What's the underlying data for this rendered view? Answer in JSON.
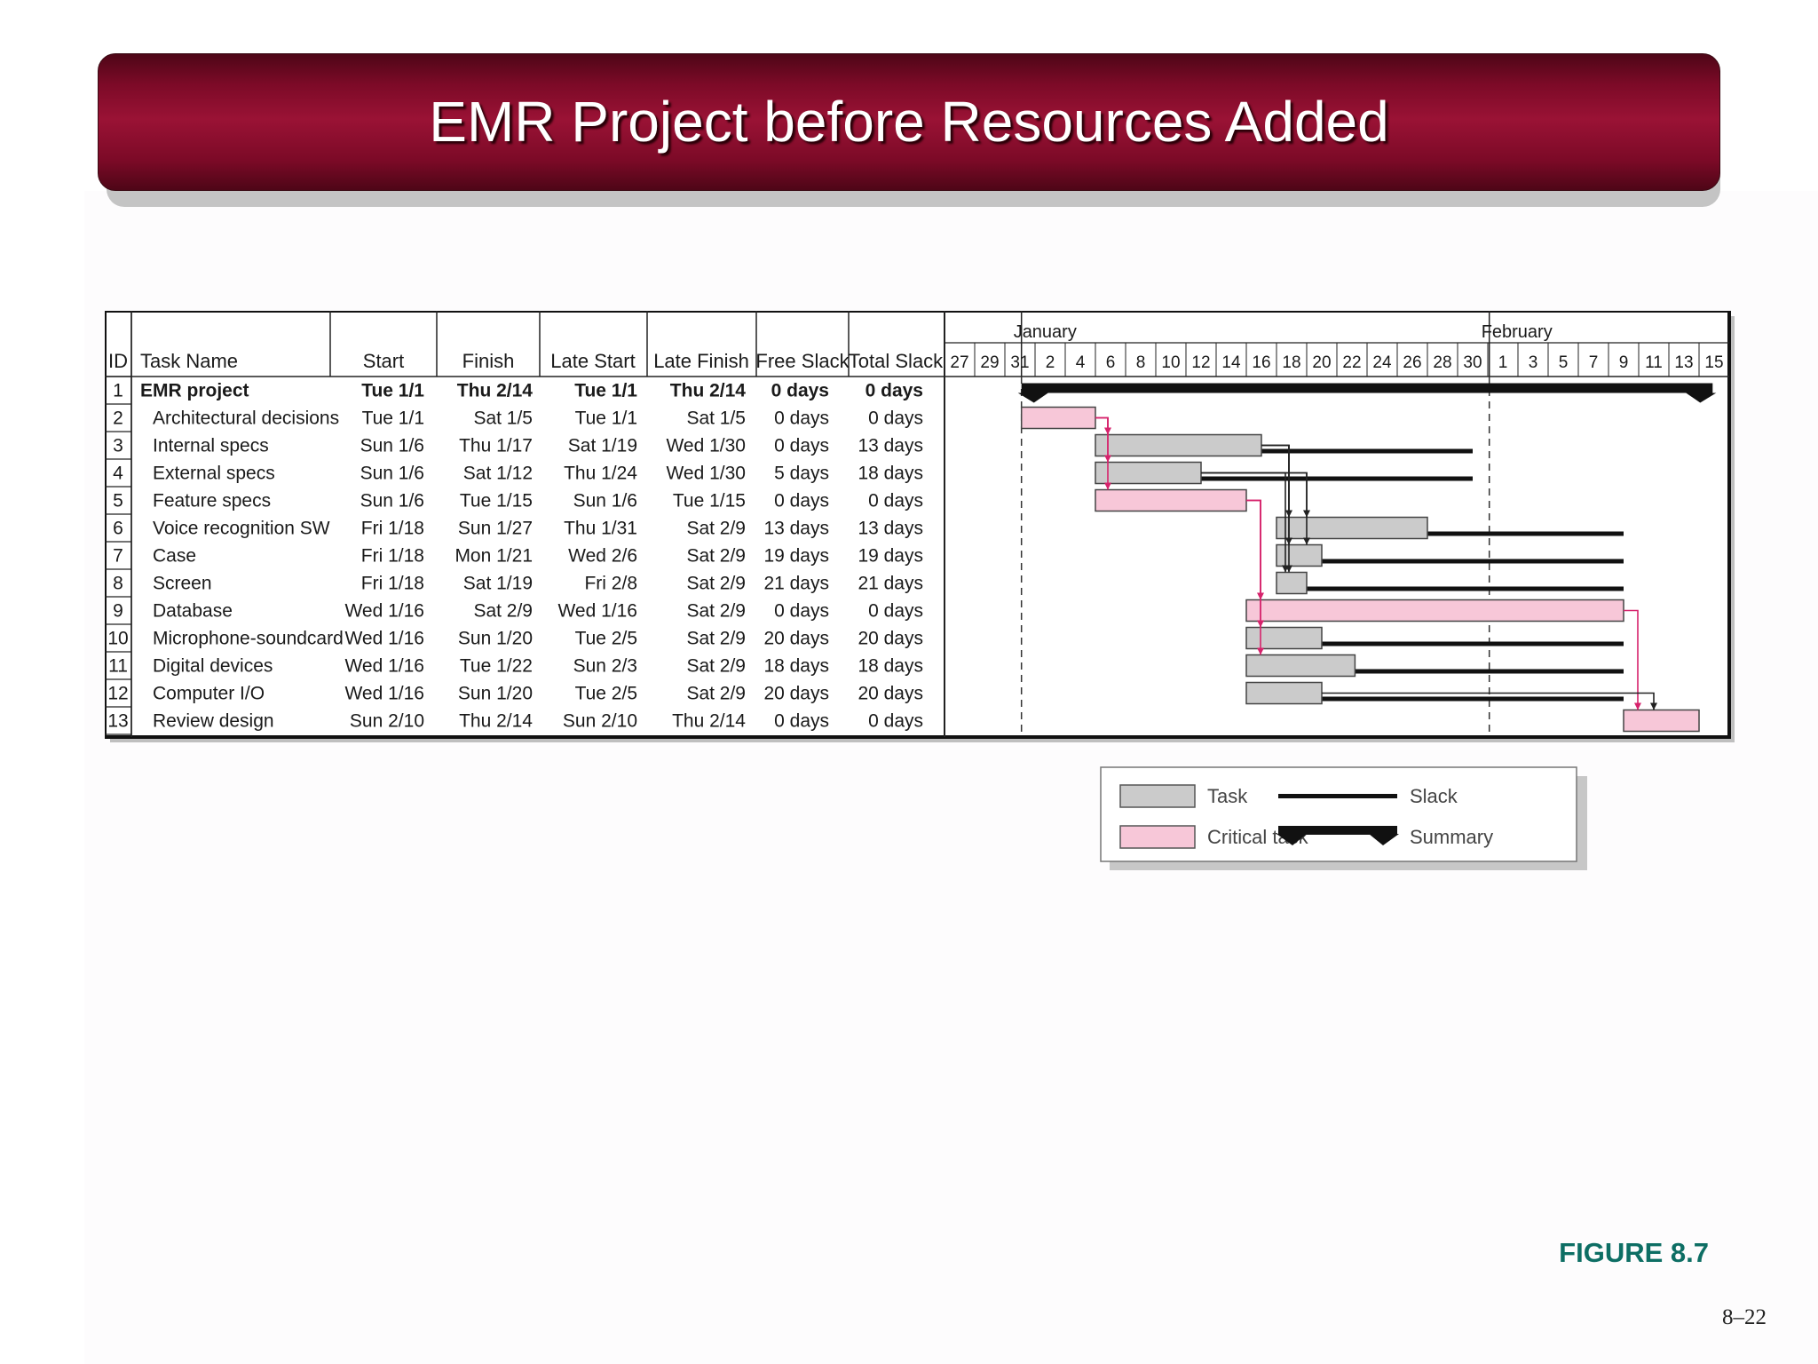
{
  "slide": {
    "title": "EMR Project before Resources Added",
    "figure_label": "FIGURE 8.7",
    "page_number": "8–22"
  },
  "colors": {
    "title_bar": "#8a0f2e",
    "task_bar": "#cbcbcb",
    "critical_bar": "#f7c7d8",
    "critical_link": "#d6236c",
    "figure_label": "#0d6e64"
  },
  "chart_data": {
    "type": "table",
    "columns": [
      "ID",
      "Task Name",
      "Start",
      "Finish",
      "Late Start",
      "Late Finish",
      "Free Slack",
      "Total Slack"
    ],
    "rows": [
      {
        "id": "1",
        "name": "EMR project",
        "start": "Tue 1/1",
        "finish": "Thu 2/14",
        "late_start": "Tue 1/1",
        "late_finish": "Thu 2/14",
        "free_slack": "0 days",
        "total_slack": "0 days",
        "summary": true
      },
      {
        "id": "2",
        "name": "Architectural decisions",
        "start": "Tue 1/1",
        "finish": "Sat 1/5",
        "late_start": "Tue 1/1",
        "late_finish": "Sat 1/5",
        "free_slack": "0 days",
        "total_slack": "0 days",
        "critical": true
      },
      {
        "id": "3",
        "name": "Internal specs",
        "start": "Sun 1/6",
        "finish": "Thu 1/17",
        "late_start": "Sat 1/19",
        "late_finish": "Wed 1/30",
        "free_slack": "0 days",
        "total_slack": "13 days",
        "critical": false
      },
      {
        "id": "4",
        "name": "External specs",
        "start": "Sun 1/6",
        "finish": "Sat 1/12",
        "late_start": "Thu 1/24",
        "late_finish": "Wed 1/30",
        "free_slack": "5 days",
        "total_slack": "18 days",
        "critical": false
      },
      {
        "id": "5",
        "name": "Feature specs",
        "start": "Sun 1/6",
        "finish": "Tue 1/15",
        "late_start": "Sun 1/6",
        "late_finish": "Tue 1/15",
        "free_slack": "0 days",
        "total_slack": "0 days",
        "critical": true
      },
      {
        "id": "6",
        "name": "Voice recognition SW",
        "start": "Fri 1/18",
        "finish": "Sun 1/27",
        "late_start": "Thu 1/31",
        "late_finish": "Sat 2/9",
        "free_slack": "13 days",
        "total_slack": "13 days",
        "critical": false
      },
      {
        "id": "7",
        "name": "Case",
        "start": "Fri 1/18",
        "finish": "Mon 1/21",
        "late_start": "Wed 2/6",
        "late_finish": "Sat 2/9",
        "free_slack": "19 days",
        "total_slack": "19 days",
        "critical": false
      },
      {
        "id": "8",
        "name": "Screen",
        "start": "Fri 1/18",
        "finish": "Sat 1/19",
        "late_start": "Fri 2/8",
        "late_finish": "Sat 2/9",
        "free_slack": "21 days",
        "total_slack": "21 days",
        "critical": false
      },
      {
        "id": "9",
        "name": "Database",
        "start": "Wed 1/16",
        "finish": "Sat 2/9",
        "late_start": "Wed 1/16",
        "late_finish": "Sat 2/9",
        "free_slack": "0 days",
        "total_slack": "0 days",
        "critical": true
      },
      {
        "id": "10",
        "name": "Microphone-soundcard",
        "start": "Wed 1/16",
        "finish": "Sun 1/20",
        "late_start": "Tue 2/5",
        "late_finish": "Sat 2/9",
        "free_slack": "20 days",
        "total_slack": "20 days",
        "critical": false
      },
      {
        "id": "11",
        "name": "Digital devices",
        "start": "Wed 1/16",
        "finish": "Tue 1/22",
        "late_start": "Sun 2/3",
        "late_finish": "Sat 2/9",
        "free_slack": "18 days",
        "total_slack": "18 days",
        "critical": false
      },
      {
        "id": "12",
        "name": "Computer I/O",
        "start": "Wed 1/16",
        "finish": "Sun 1/20",
        "late_start": "Tue 2/5",
        "late_finish": "Sat 2/9",
        "free_slack": "20 days",
        "total_slack": "20 days",
        "critical": false
      },
      {
        "id": "13",
        "name": "Review design",
        "start": "Sun 2/10",
        "finish": "Thu 2/14",
        "late_start": "Sun 2/10",
        "late_finish": "Thu 2/14",
        "free_slack": "0 days",
        "total_slack": "0 days",
        "critical": true
      }
    ],
    "timeline": {
      "months": [
        {
          "label": "January",
          "start_day": 31
        },
        {
          "label": "February",
          "start_day": 62
        }
      ],
      "ticks": [
        {
          "label": "27",
          "day": 27
        },
        {
          "label": "29",
          "day": 29
        },
        {
          "label": "31",
          "day": 31
        },
        {
          "label": "2",
          "day": 33
        },
        {
          "label": "4",
          "day": 35
        },
        {
          "label": "6",
          "day": 37
        },
        {
          "label": "8",
          "day": 39
        },
        {
          "label": "10",
          "day": 41
        },
        {
          "label": "12",
          "day": 43
        },
        {
          "label": "14",
          "day": 45
        },
        {
          "label": "16",
          "day": 47
        },
        {
          "label": "18",
          "day": 49
        },
        {
          "label": "20",
          "day": 51
        },
        {
          "label": "22",
          "day": 53
        },
        {
          "label": "24",
          "day": 55
        },
        {
          "label": "26",
          "day": 57
        },
        {
          "label": "28",
          "day": 59
        },
        {
          "label": "30",
          "day": 61
        },
        {
          "label": "1",
          "day": 63
        },
        {
          "label": "3",
          "day": 65
        },
        {
          "label": "5",
          "day": 67
        },
        {
          "label": "7",
          "day": 69
        },
        {
          "label": "9",
          "day": 71
        },
        {
          "label": "11",
          "day": 73
        },
        {
          "label": "13",
          "day": 75
        },
        {
          "label": "15",
          "day": 77
        }
      ],
      "day_range": [
        26,
        78
      ],
      "month_boundaries": [
        31.1,
        62.1
      ]
    },
    "bars": [
      {
        "row": 1,
        "kind": "summary",
        "start": 31.1,
        "end": 76.9
      },
      {
        "row": 2,
        "kind": "critical",
        "start": 31.1,
        "end": 36
      },
      {
        "row": 3,
        "kind": "task",
        "start": 36,
        "end": 47,
        "slack_end": 61
      },
      {
        "row": 4,
        "kind": "task",
        "start": 36,
        "end": 43,
        "slack_end": 61
      },
      {
        "row": 5,
        "kind": "critical",
        "start": 36,
        "end": 46
      },
      {
        "row": 6,
        "kind": "task",
        "start": 48,
        "end": 58,
        "slack_end": 71
      },
      {
        "row": 7,
        "kind": "task",
        "start": 48,
        "end": 51,
        "slack_end": 71
      },
      {
        "row": 8,
        "kind": "task",
        "start": 48,
        "end": 50,
        "slack_end": 71
      },
      {
        "row": 9,
        "kind": "critical",
        "start": 46,
        "end": 71
      },
      {
        "row": 10,
        "kind": "task",
        "start": 46,
        "end": 51,
        "slack_end": 71
      },
      {
        "row": 11,
        "kind": "task",
        "start": 46,
        "end": 53.2,
        "slack_end": 71
      },
      {
        "row": 12,
        "kind": "task",
        "start": 46,
        "end": 51,
        "slack_end": 71
      },
      {
        "row": 13,
        "kind": "critical",
        "start": 71,
        "end": 76
      }
    ],
    "links": [
      {
        "from": 2,
        "to": 3,
        "critical": true
      },
      {
        "from": 2,
        "to": 4,
        "critical": true
      },
      {
        "from": 2,
        "to": 5,
        "critical": true
      },
      {
        "from": 3,
        "to": 6,
        "critical": false
      },
      {
        "from": 3,
        "to": 7,
        "critical": false
      },
      {
        "from": 3,
        "to": 8,
        "critical": false
      },
      {
        "from": 4,
        "to": 6,
        "critical": false
      },
      {
        "from": 4,
        "to": 7,
        "critical": false
      },
      {
        "from": 4,
        "to": 8,
        "critical": false
      },
      {
        "from": 5,
        "to": 9,
        "critical": true
      },
      {
        "from": 5,
        "to": 10,
        "critical": true
      },
      {
        "from": 5,
        "to": 11,
        "critical": true
      },
      {
        "from": 9,
        "to": 13,
        "critical": true
      },
      {
        "from": 12,
        "to": 13,
        "critical": false
      }
    ],
    "legend": [
      {
        "label": "Task",
        "kind": "task"
      },
      {
        "label": "Slack",
        "kind": "slack"
      },
      {
        "label": "Critical task",
        "kind": "critical"
      },
      {
        "label": "Summary",
        "kind": "summary"
      }
    ]
  }
}
